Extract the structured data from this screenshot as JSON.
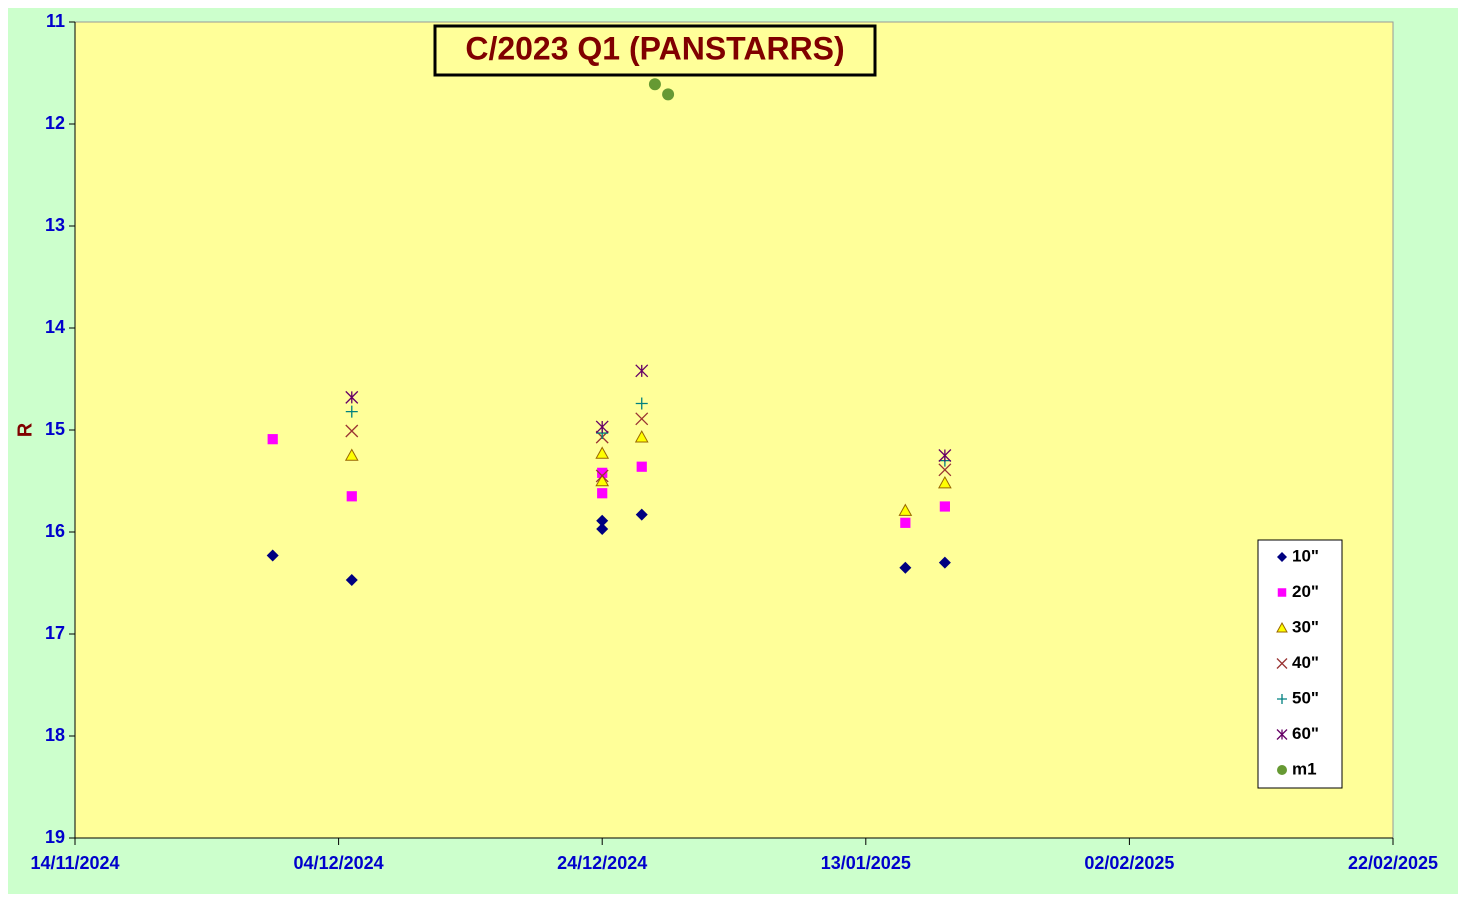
{
  "chart_data": {
    "type": "scatter",
    "title": "C/2023 Q1 (PANSTARRS)",
    "y_label": "R",
    "xlim": [
      "14/11/2024",
      "22/02/2025"
    ],
    "xticks": [
      "14/11/2024",
      "04/12/2024",
      "24/12/2024",
      "13/01/2025",
      "02/02/2025",
      "22/02/2025"
    ],
    "ylim": [
      19,
      11
    ],
    "yticks": [
      11,
      12,
      13,
      14,
      15,
      16,
      17,
      18,
      19
    ],
    "legend": "right",
    "series": [
      {
        "name": "10\"",
        "color": "#000080",
        "marker": "diamond",
        "x": [
          "29/11/2024",
          "05/12/2024",
          "24/12/2024",
          "24/12/2024",
          "27/12/2024",
          "16/01/2025",
          "19/01/2025"
        ],
        "values": [
          16.23,
          16.47,
          15.89,
          15.97,
          15.83,
          16.35,
          16.3
        ]
      },
      {
        "name": "20\"",
        "color": "#ff00ff",
        "marker": "square",
        "x": [
          "29/11/2024",
          "05/12/2024",
          "24/12/2024",
          "24/12/2024",
          "27/12/2024",
          "16/01/2025",
          "19/01/2025"
        ],
        "values": [
          15.09,
          15.65,
          15.42,
          15.62,
          15.36,
          15.91,
          15.75
        ]
      },
      {
        "name": "30\"",
        "color": "#ffff00",
        "marker": "triangle",
        "x": [
          "05/12/2024",
          "24/12/2024",
          "24/12/2024",
          "27/12/2024",
          "16/01/2025",
          "19/01/2025"
        ],
        "values": [
          15.25,
          15.23,
          15.5,
          15.07,
          15.79,
          15.52
        ]
      },
      {
        "name": "40\"",
        "color": "#993333",
        "marker": "x",
        "x": [
          "05/12/2024",
          "24/12/2024",
          "24/12/2024",
          "27/12/2024",
          "19/01/2025"
        ],
        "values": [
          15.01,
          15.07,
          15.45,
          14.89,
          15.39
        ]
      },
      {
        "name": "50\"",
        "color": "#008080",
        "marker": "plus",
        "x": [
          "05/12/2024",
          "24/12/2024",
          "27/12/2024",
          "19/01/2025"
        ],
        "values": [
          14.82,
          15.03,
          14.74,
          15.3
        ]
      },
      {
        "name": "60\"",
        "color": "#660066",
        "marker": "star",
        "x": [
          "05/12/2024",
          "24/12/2024",
          "27/12/2024",
          "19/01/2025"
        ],
        "values": [
          14.68,
          14.97,
          14.42,
          15.25
        ]
      },
      {
        "name": "m1",
        "color": "#669933",
        "marker": "circle",
        "x": [
          "28/12/2024",
          "29/12/2024"
        ],
        "values": [
          11.61,
          11.71
        ]
      }
    ]
  }
}
